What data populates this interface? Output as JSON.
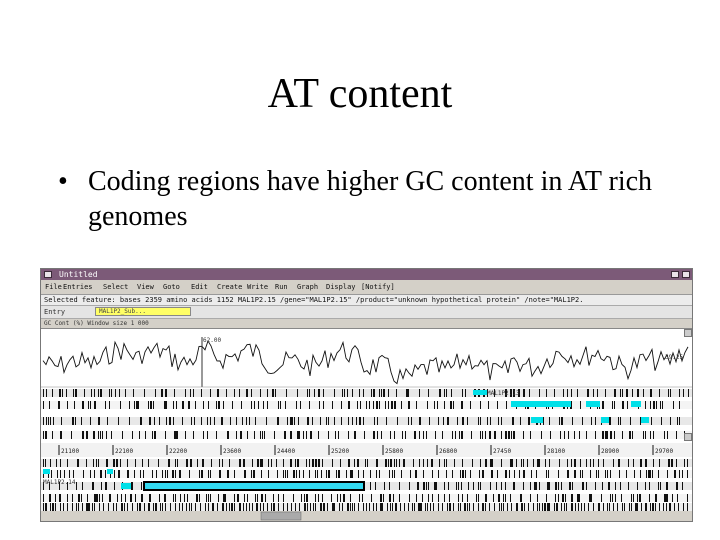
{
  "slide": {
    "title": "AT content",
    "bullet_symbol": "•",
    "bullet": "Coding regions have higher GC content in AT rich genomes"
  },
  "app": {
    "window_title": "Untitled",
    "menu": [
      "File",
      "Entries",
      "Select",
      "View",
      "Goto",
      "Edit",
      "Create",
      "Write",
      "Run",
      "Graph",
      "Display",
      "[Notify]"
    ],
    "selected_feature": "Selected feature:  bases 2359  amino acids 1152  MAL1P2.15  /gene=\"MAL1P2.15\" /product=\"unknown hypothetical protein\" /note=\"MAL1P2.",
    "feature_label": "Entry",
    "feature_chip": "MAL1P2_Sub...",
    "graph_header": "GC Cont (%)  Window size 1 000",
    "graph_top_value": "62.00",
    "graph_right_value": "39.25",
    "coord_labels": [
      "21100",
      "22100",
      "22200",
      "23600",
      "24400",
      "25200",
      "25800",
      "26800",
      "27450",
      "28100",
      "28900",
      "29700"
    ],
    "feature_names": [
      "MAL1P2.13",
      "MAL1P2.14"
    ],
    "colors": {
      "titlebar": "#7c5a78",
      "chrome": "#d4d0c8",
      "chip": "#ffff66",
      "feature_cyan": "#00e0e8",
      "selected_block": "#33d9f0"
    }
  }
}
